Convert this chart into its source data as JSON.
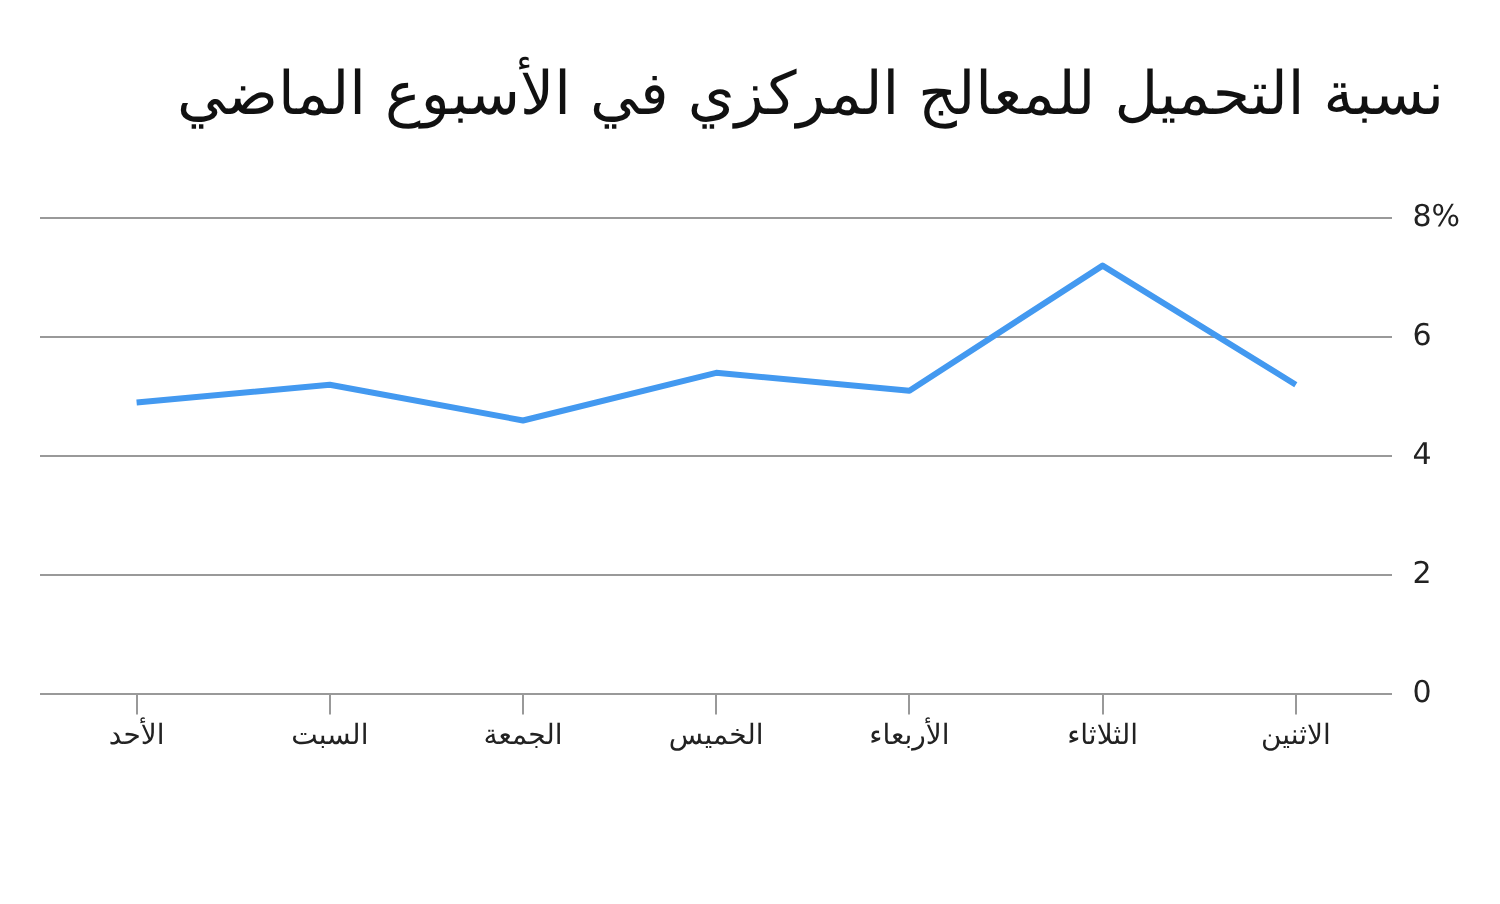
{
  "chart_data": {
    "type": "line",
    "title": "نسبة التحميل للمعالج المركزي في الأسبوع الماضي",
    "categories": [
      "الأحد",
      "السبت",
      "الجمعة",
      "الخميس",
      "الأربعاء",
      "الثلاثاء",
      "الاثنين"
    ],
    "series": [
      {
        "color": "#4399f0",
        "values": [
          4.9,
          5.2,
          4.6,
          5.4,
          5.1,
          7.2,
          5.2
        ]
      }
    ],
    "ylim": [
      0,
      8
    ],
    "yticks": [
      0,
      2,
      4,
      6,
      {
        "value": 8,
        "label": "8%"
      }
    ],
    "grid": "y",
    "legend": false,
    "marker": "none",
    "line_style": "solid"
  }
}
